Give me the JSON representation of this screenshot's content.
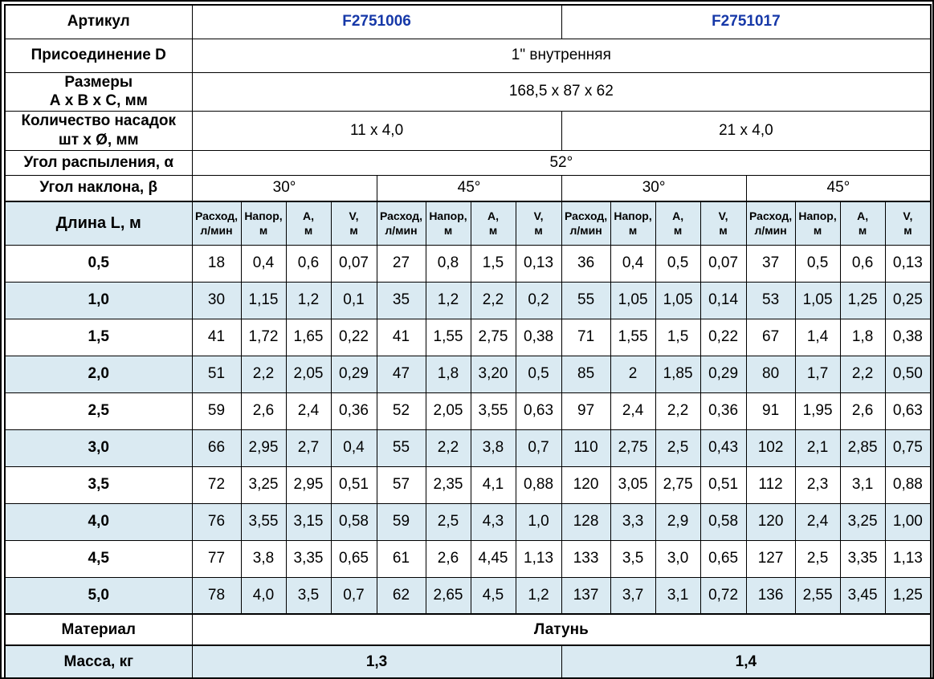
{
  "colors": {
    "stripe_blue": "#daeaf2",
    "article_blue": "#1638a8",
    "border_black": "#000000"
  },
  "table": {
    "info_rows": {
      "article": {
        "label": "Артикул",
        "values": [
          "F2751006",
          "F2751017"
        ]
      },
      "connection": {
        "label": "Присоединение D",
        "value": "1\" внутренняя"
      },
      "dimensions": {
        "label": "Размеры\nА х В х С, мм",
        "value": "168,5 x 87 x 62"
      },
      "nozzles": {
        "label": "Количество насадок\nшт х Ø, мм",
        "values": [
          "11 х 4,0",
          "21 х 4,0"
        ]
      },
      "spray_angle": {
        "label": "Угол распыления, α",
        "value": "52°"
      },
      "tilt_angle": {
        "label": "Угол наклона, β",
        "values": [
          "30°",
          "45°",
          "30°",
          "45°"
        ]
      }
    },
    "data_header": {
      "label": "Длина L, м",
      "sub_columns": [
        "Расход,\nл/мин",
        "Напор,\nм",
        "А,\nм",
        "V,\nм"
      ]
    },
    "data_rows": [
      {
        "length": "0,5",
        "values": [
          "18",
          "0,4",
          "0,6",
          "0,07",
          "27",
          "0,8",
          "1,5",
          "0,13",
          "36",
          "0,4",
          "0,5",
          "0,07",
          "37",
          "0,5",
          "0,6",
          "0,13"
        ]
      },
      {
        "length": "1,0",
        "values": [
          "30",
          "1,15",
          "1,2",
          "0,1",
          "35",
          "1,2",
          "2,2",
          "0,2",
          "55",
          "1,05",
          "1,05",
          "0,14",
          "53",
          "1,05",
          "1,25",
          "0,25"
        ]
      },
      {
        "length": "1,5",
        "values": [
          "41",
          "1,72",
          "1,65",
          "0,22",
          "41",
          "1,55",
          "2,75",
          "0,38",
          "71",
          "1,55",
          "1,5",
          "0,22",
          "67",
          "1,4",
          "1,8",
          "0,38"
        ]
      },
      {
        "length": "2,0",
        "values": [
          "51",
          "2,2",
          "2,05",
          "0,29",
          "47",
          "1,8",
          "3,20",
          "0,5",
          "85",
          "2",
          "1,85",
          "0,29",
          "80",
          "1,7",
          "2,2",
          "0,50"
        ]
      },
      {
        "length": "2,5",
        "values": [
          "59",
          "2,6",
          "2,4",
          "0,36",
          "52",
          "2,05",
          "3,55",
          "0,63",
          "97",
          "2,4",
          "2,2",
          "0,36",
          "91",
          "1,95",
          "2,6",
          "0,63"
        ]
      },
      {
        "length": "3,0",
        "values": [
          "66",
          "2,95",
          "2,7",
          "0,4",
          "55",
          "2,2",
          "3,8",
          "0,7",
          "110",
          "2,75",
          "2,5",
          "0,43",
          "102",
          "2,1",
          "2,85",
          "0,75"
        ]
      },
      {
        "length": "3,5",
        "values": [
          "72",
          "3,25",
          "2,95",
          "0,51",
          "57",
          "2,35",
          "4,1",
          "0,88",
          "120",
          "3,05",
          "2,75",
          "0,51",
          "112",
          "2,3",
          "3,1",
          "0,88"
        ]
      },
      {
        "length": "4,0",
        "values": [
          "76",
          "3,55",
          "3,15",
          "0,58",
          "59",
          "2,5",
          "4,3",
          "1,0",
          "128",
          "3,3",
          "2,9",
          "0,58",
          "120",
          "2,4",
          "3,25",
          "1,00"
        ]
      },
      {
        "length": "4,5",
        "values": [
          "77",
          "3,8",
          "3,35",
          "0,65",
          "61",
          "2,6",
          "4,45",
          "1,13",
          "133",
          "3,5",
          "3,0",
          "0,65",
          "127",
          "2,5",
          "3,35",
          "1,13"
        ]
      },
      {
        "length": "5,0",
        "values": [
          "78",
          "4,0",
          "3,5",
          "0,7",
          "62",
          "2,65",
          "4,5",
          "1,2",
          "137",
          "3,7",
          "3,1",
          "0,72",
          "136",
          "2,55",
          "3,45",
          "1,25"
        ]
      }
    ],
    "footer": {
      "material": {
        "label": "Материал",
        "value": "Латунь"
      },
      "mass": {
        "label": "Масса, кг",
        "values": [
          "1,3",
          "1,4"
        ]
      }
    }
  }
}
